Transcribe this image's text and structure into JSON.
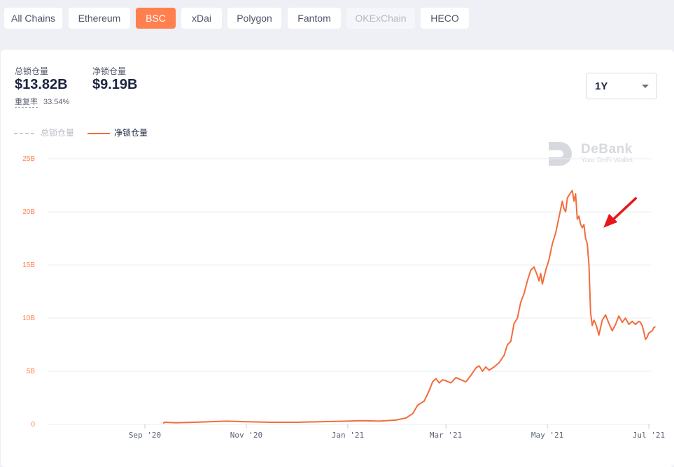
{
  "chain_tabs": [
    {
      "label": "All Chains",
      "state": "normal"
    },
    {
      "label": "Ethereum",
      "state": "normal"
    },
    {
      "label": "BSC",
      "state": "active"
    },
    {
      "label": "xDai",
      "state": "normal"
    },
    {
      "label": "Polygon",
      "state": "normal"
    },
    {
      "label": "Fantom",
      "state": "normal"
    },
    {
      "label": "OKExChain",
      "state": "disabled"
    },
    {
      "label": "HECO",
      "state": "normal"
    }
  ],
  "stats": {
    "total_locked_label": "总锁仓量",
    "total_locked_value": "$13.82B",
    "net_locked_label": "净锁仓量",
    "net_locked_value": "$9.19B",
    "overlap_label": "重复率",
    "overlap_value": "33.54%"
  },
  "range_select": {
    "value": "1Y",
    "icon": "chevron-down-icon"
  },
  "watermark": {
    "title": "DeBank",
    "subtitle": "Your DeFi Wallet",
    "icon": "debank-logo-icon"
  },
  "colors": {
    "accent": "#ff7f4f",
    "line": "#f26d3d",
    "grid": "#ebedf2",
    "axis_label": "#ff7f4f",
    "arrow": "#e8161b"
  },
  "chart_data": {
    "type": "line",
    "legend": [
      {
        "label": "总锁仓量",
        "style": "dashed",
        "visible": false
      },
      {
        "label": "净锁仓量",
        "style": "solid",
        "visible": true
      }
    ],
    "legend_position": "top-left",
    "grid": "horizontal",
    "ylim": [
      0,
      25
    ],
    "y_ticks": [
      {
        "v": 0,
        "label": "0"
      },
      {
        "v": 5,
        "label": "5B"
      },
      {
        "v": 10,
        "label": "10B"
      },
      {
        "v": 15,
        "label": "15B"
      },
      {
        "v": 20,
        "label": "20B"
      },
      {
        "v": 25,
        "label": "25B"
      }
    ],
    "xlim": [
      "2020-08-01",
      "2021-07-01"
    ],
    "x_ticks": [
      {
        "date": "2020-09-01",
        "label": "Sep '20"
      },
      {
        "date": "2020-11-01",
        "label": "Nov '20"
      },
      {
        "date": "2021-01-01",
        "label": "Jan '21"
      },
      {
        "date": "2021-03-01",
        "label": "Mar '21"
      },
      {
        "date": "2021-05-01",
        "label": "May '21"
      },
      {
        "date": "2021-07-01",
        "label": "Jul '21"
      }
    ],
    "series": [
      {
        "name": "净锁仓量",
        "points": [
          [
            "2020-09-12",
            0.1
          ],
          [
            "2020-09-13",
            0.2
          ],
          [
            "2020-09-20",
            0.15
          ],
          [
            "2020-10-01",
            0.2
          ],
          [
            "2020-10-10",
            0.25
          ],
          [
            "2020-10-20",
            0.3
          ],
          [
            "2020-11-01",
            0.25
          ],
          [
            "2020-11-15",
            0.2
          ],
          [
            "2020-12-01",
            0.2
          ],
          [
            "2020-12-15",
            0.25
          ],
          [
            "2021-01-01",
            0.3
          ],
          [
            "2021-01-10",
            0.35
          ],
          [
            "2021-01-20",
            0.3
          ],
          [
            "2021-01-30",
            0.4
          ],
          [
            "2021-02-05",
            0.6
          ],
          [
            "2021-02-09",
            1.0
          ],
          [
            "2021-02-12",
            1.8
          ],
          [
            "2021-02-16",
            2.2
          ],
          [
            "2021-02-19",
            3.2
          ],
          [
            "2021-02-21",
            4.0
          ],
          [
            "2021-02-23",
            4.3
          ],
          [
            "2021-02-25",
            3.9
          ],
          [
            "2021-02-27",
            4.2
          ],
          [
            "2021-03-01",
            4.1
          ],
          [
            "2021-03-04",
            3.9
          ],
          [
            "2021-03-07",
            4.4
          ],
          [
            "2021-03-10",
            4.2
          ],
          [
            "2021-03-13",
            4.0
          ],
          [
            "2021-03-16",
            4.6
          ],
          [
            "2021-03-19",
            5.3
          ],
          [
            "2021-03-21",
            5.5
          ],
          [
            "2021-03-23",
            5.0
          ],
          [
            "2021-03-25",
            5.4
          ],
          [
            "2021-03-27",
            5.1
          ],
          [
            "2021-03-30",
            5.4
          ],
          [
            "2021-04-02",
            5.8
          ],
          [
            "2021-04-05",
            6.5
          ],
          [
            "2021-04-07",
            7.5
          ],
          [
            "2021-04-09",
            7.8
          ],
          [
            "2021-04-11",
            9.5
          ],
          [
            "2021-04-13",
            10.0
          ],
          [
            "2021-04-15",
            11.5
          ],
          [
            "2021-04-17",
            12.3
          ],
          [
            "2021-04-19",
            13.5
          ],
          [
            "2021-04-21",
            14.5
          ],
          [
            "2021-04-23",
            14.8
          ],
          [
            "2021-04-25",
            14.0
          ],
          [
            "2021-04-26",
            13.5
          ],
          [
            "2021-04-27",
            14.2
          ],
          [
            "2021-04-28",
            13.2
          ],
          [
            "2021-04-30",
            14.5
          ],
          [
            "2021-05-02",
            15.5
          ],
          [
            "2021-05-04",
            17.0
          ],
          [
            "2021-05-06",
            18.0
          ],
          [
            "2021-05-08",
            19.5
          ],
          [
            "2021-05-10",
            21.0
          ],
          [
            "2021-05-11",
            20.3
          ],
          [
            "2021-05-12",
            20.0
          ],
          [
            "2021-05-13",
            21.3
          ],
          [
            "2021-05-15",
            21.8
          ],
          [
            "2021-05-16",
            22.0
          ],
          [
            "2021-05-17",
            21.0
          ],
          [
            "2021-05-18",
            21.7
          ],
          [
            "2021-05-19",
            19.3
          ],
          [
            "2021-05-20",
            19.6
          ],
          [
            "2021-05-21",
            18.8
          ],
          [
            "2021-05-22",
            18.5
          ],
          [
            "2021-05-23",
            18.8
          ],
          [
            "2021-05-24",
            17.5
          ],
          [
            "2021-05-25",
            17.0
          ],
          [
            "2021-05-26",
            15.0
          ],
          [
            "2021-05-27",
            10.5
          ],
          [
            "2021-05-28",
            9.3
          ],
          [
            "2021-05-29",
            9.8
          ],
          [
            "2021-05-30",
            9.5
          ],
          [
            "2021-05-31",
            9.0
          ],
          [
            "2021-06-01",
            8.4
          ],
          [
            "2021-06-03",
            9.8
          ],
          [
            "2021-06-05",
            10.3
          ],
          [
            "2021-06-07",
            9.5
          ],
          [
            "2021-06-09",
            8.8
          ],
          [
            "2021-06-11",
            9.4
          ],
          [
            "2021-06-13",
            10.2
          ],
          [
            "2021-06-15",
            9.6
          ],
          [
            "2021-06-17",
            10.0
          ],
          [
            "2021-06-19",
            9.4
          ],
          [
            "2021-06-21",
            9.7
          ],
          [
            "2021-06-23",
            9.4
          ],
          [
            "2021-06-25",
            9.7
          ],
          [
            "2021-06-26",
            9.6
          ],
          [
            "2021-06-27",
            9.3
          ],
          [
            "2021-06-28",
            8.7
          ],
          [
            "2021-06-29",
            8.0
          ],
          [
            "2021-06-30",
            8.2
          ],
          [
            "2021-07-01",
            8.6
          ],
          [
            "2021-07-02",
            8.7
          ],
          [
            "2021-07-03",
            8.8
          ],
          [
            "2021-07-04",
            9.1
          ],
          [
            "2021-07-05",
            9.2
          ]
        ]
      }
    ],
    "annotations": [
      {
        "type": "arrow",
        "date": "2021-05-28",
        "value": 18.5,
        "color": "#e8161b"
      }
    ]
  }
}
